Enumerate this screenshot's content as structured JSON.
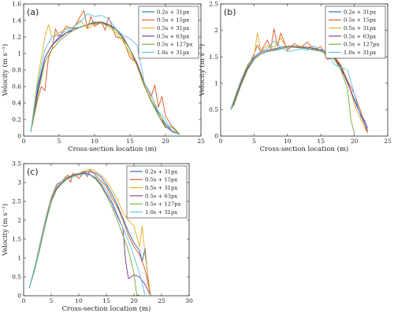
{
  "series_colors": [
    "#1f5fb0",
    "#d9531e",
    "#e0ad1f",
    "#7b2f8f",
    "#73a82e",
    "#55c2ee"
  ],
  "chart_data": [
    {
      "type": "line",
      "panel_label": "(a)",
      "xlabel": "Cross-section location (m)",
      "ylabel": "Velocity (m s⁻¹)",
      "xlim": [
        0,
        25
      ],
      "ylim": [
        0,
        1.6
      ],
      "xticks": [
        0,
        5,
        10,
        15,
        20,
        25
      ],
      "yticks": [
        0,
        0.2,
        0.4,
        0.6,
        0.8,
        1.0,
        1.2,
        1.4,
        1.6
      ],
      "ytick_labels": [
        "0",
        "0.2",
        "0.4",
        "0.6",
        "0.8",
        "1",
        "1.2",
        "1.4",
        "1.6"
      ],
      "legend_position": "top-right",
      "series": [
        {
          "name": "0.2s + 31px",
          "x": [
            1,
            2,
            3,
            4,
            5,
            6,
            7,
            8,
            9,
            10,
            11,
            12,
            13,
            14,
            15,
            16,
            17,
            18,
            19,
            20,
            21,
            22
          ],
          "y": [
            0.05,
            0.6,
            0.95,
            1.1,
            1.2,
            1.25,
            1.3,
            1.32,
            1.35,
            1.36,
            1.38,
            1.35,
            1.3,
            1.2,
            1.05,
            0.85,
            0.62,
            0.42,
            0.28,
            0.15,
            0.06,
            0.02
          ]
        },
        {
          "name": "0.5s + 15px",
          "x": [
            1,
            2,
            2.5,
            3,
            3.5,
            4,
            4.5,
            5,
            6,
            7,
            8,
            8.5,
            9,
            9.5,
            10,
            11,
            11.5,
            12,
            12.5,
            13,
            14,
            15,
            16,
            17,
            18,
            18.5,
            19,
            19.5,
            20,
            21,
            22
          ],
          "y": [
            0.05,
            0.45,
            0.6,
            0.55,
            0.95,
            1.05,
            1.3,
            1.2,
            1.33,
            1.3,
            1.45,
            1.52,
            1.3,
            1.45,
            1.33,
            1.38,
            1.28,
            1.44,
            1.32,
            1.2,
            1.18,
            0.95,
            0.88,
            0.65,
            0.48,
            0.62,
            0.35,
            0.48,
            0.25,
            0.1,
            0.02
          ]
        },
        {
          "name": "0.5s + 31px",
          "x": [
            1,
            2,
            3,
            3.5,
            4,
            5,
            6,
            7,
            8,
            9,
            10,
            11,
            12,
            13,
            14,
            15,
            16,
            17,
            18,
            19,
            20,
            21,
            22
          ],
          "y": [
            0.05,
            0.7,
            1.2,
            1.35,
            1.2,
            1.25,
            1.3,
            1.32,
            1.4,
            1.3,
            1.35,
            1.38,
            1.32,
            1.25,
            1.15,
            1.0,
            0.85,
            0.6,
            0.45,
            0.3,
            0.12,
            0.05,
            0.02
          ]
        },
        {
          "name": "0.5s + 63px",
          "x": [
            1,
            2,
            3,
            4,
            5,
            6,
            7,
            8,
            9,
            10,
            11,
            12,
            13,
            14,
            15,
            16,
            17,
            18,
            19,
            20,
            21,
            22
          ],
          "y": [
            0.05,
            0.55,
            0.95,
            1.1,
            1.18,
            1.25,
            1.28,
            1.32,
            1.35,
            1.38,
            1.38,
            1.34,
            1.3,
            1.2,
            1.05,
            0.88,
            0.62,
            0.42,
            0.25,
            0.12,
            0.05,
            0.02
          ]
        },
        {
          "name": "0.5s + 127px",
          "x": [
            1,
            2,
            3,
            4,
            5,
            6,
            7,
            8,
            9,
            10,
            11,
            12,
            13,
            14,
            15,
            16,
            17,
            18,
            19,
            20,
            21,
            22
          ],
          "y": [
            0.05,
            0.5,
            0.9,
            1.05,
            1.15,
            1.22,
            1.28,
            1.32,
            1.35,
            1.37,
            1.36,
            1.34,
            1.28,
            1.18,
            1.05,
            0.85,
            0.62,
            0.42,
            0.25,
            0.1,
            0.12,
            0.02
          ]
        },
        {
          "name": "1.0s + 31px",
          "x": [
            1,
            2,
            3,
            4,
            5,
            6,
            7,
            8,
            9,
            10,
            11,
            12,
            13,
            14,
            15,
            16,
            17,
            18,
            19,
            20,
            21,
            22
          ],
          "y": [
            0.05,
            0.65,
            1.05,
            1.2,
            1.22,
            1.28,
            1.32,
            1.38,
            1.48,
            1.45,
            1.46,
            1.42,
            1.3,
            1.22,
            1.18,
            1.1,
            0.65,
            0.5,
            0.3,
            0.2,
            0.05,
            0.02
          ]
        }
      ]
    },
    {
      "type": "line",
      "panel_label": "(b)",
      "xlabel": "Cross-section location (m)",
      "ylabel": "Velocity (m s⁻¹)",
      "xlim": [
        0,
        25
      ],
      "ylim": [
        0,
        2.5
      ],
      "xticks": [
        0,
        5,
        10,
        15,
        20,
        25
      ],
      "yticks": [
        0,
        0.5,
        1.0,
        1.5,
        2.0,
        2.5
      ],
      "ytick_labels": [
        "0",
        "0.5",
        "1",
        "1.5",
        "2",
        "2.5"
      ],
      "legend_position": "top-right",
      "series": [
        {
          "name": "0.2s + 31px",
          "x": [
            1.5,
            2,
            3,
            4,
            5,
            6,
            7,
            8,
            9,
            10,
            11,
            12,
            13,
            14,
            15,
            16,
            17,
            18,
            19,
            20,
            21,
            21.5,
            22
          ],
          "y": [
            0.5,
            0.6,
            0.95,
            1.25,
            1.45,
            1.55,
            1.6,
            1.62,
            1.65,
            1.68,
            1.68,
            1.67,
            1.66,
            1.64,
            1.62,
            1.55,
            1.48,
            1.3,
            1.0,
            0.7,
            0.4,
            0.3,
            0.15
          ]
        },
        {
          "name": "0.5s + 15px",
          "x": [
            1.5,
            2,
            3,
            4,
            5,
            5.5,
            6,
            7,
            7.5,
            8,
            8.5,
            9,
            10,
            11,
            12,
            13,
            14,
            15,
            16,
            17,
            18,
            19,
            20,
            21,
            22
          ],
          "y": [
            0.5,
            0.65,
            1.0,
            1.3,
            1.55,
            1.72,
            1.6,
            1.82,
            1.65,
            2.03,
            1.7,
            1.95,
            1.62,
            1.75,
            1.68,
            1.78,
            1.62,
            1.7,
            1.45,
            1.5,
            1.25,
            1.05,
            0.8,
            0.45,
            0.05
          ]
        },
        {
          "name": "0.5s + 31px",
          "x": [
            1.5,
            2,
            3,
            4,
            5,
            5.5,
            6,
            7,
            8,
            9,
            10,
            11,
            12,
            13,
            14,
            15,
            16,
            17,
            18,
            19,
            20,
            21,
            22
          ],
          "y": [
            0.5,
            0.7,
            1.05,
            1.35,
            1.5,
            1.95,
            1.6,
            1.72,
            1.68,
            1.85,
            1.65,
            1.7,
            1.7,
            1.68,
            1.7,
            1.6,
            1.58,
            1.52,
            1.35,
            1.05,
            0.6,
            0.3,
            0.05
          ]
        },
        {
          "name": "0.5s + 63px",
          "x": [
            1.5,
            2,
            3,
            4,
            5,
            6,
            7,
            8,
            9,
            10,
            11,
            12,
            13,
            14,
            15,
            16,
            17,
            18,
            19,
            20,
            21,
            22
          ],
          "y": [
            0.5,
            0.62,
            0.98,
            1.28,
            1.48,
            1.58,
            1.62,
            1.65,
            1.68,
            1.7,
            1.7,
            1.68,
            1.68,
            1.66,
            1.64,
            1.58,
            1.5,
            1.32,
            1.02,
            0.68,
            0.38,
            0.1
          ]
        },
        {
          "name": "0.5s + 127px",
          "x": [
            1.5,
            2,
            3,
            4,
            5,
            6,
            7,
            8,
            9,
            10,
            11,
            12,
            13,
            14,
            15,
            16,
            17,
            18,
            19,
            19.5,
            20
          ],
          "y": [
            0.5,
            0.6,
            0.95,
            1.25,
            1.45,
            1.55,
            1.6,
            1.63,
            1.66,
            1.68,
            1.68,
            1.67,
            1.65,
            1.63,
            1.6,
            1.55,
            1.45,
            1.25,
            0.9,
            0.3,
            0.05
          ]
        },
        {
          "name": "1.0s + 31px",
          "x": [
            1.5,
            2,
            3,
            4,
            5,
            6,
            7,
            8,
            9,
            10,
            11,
            12,
            13,
            14,
            15,
            16,
            17,
            18,
            19,
            20,
            21
          ],
          "y": [
            0.5,
            0.68,
            1.05,
            1.32,
            1.5,
            1.6,
            1.65,
            1.8,
            1.68,
            1.6,
            1.62,
            1.65,
            1.62,
            1.7,
            1.62,
            1.58,
            1.35,
            1.3,
            1.25,
            0.8,
            0.35
          ]
        }
      ]
    },
    {
      "type": "line",
      "panel_label": "(c)",
      "xlabel": "Cross-section location (m)",
      "ylabel": "Velocity (m s⁻¹)",
      "xlim": [
        0,
        30
      ],
      "ylim": [
        0,
        3.5
      ],
      "xticks": [
        0,
        5,
        10,
        15,
        20,
        25,
        30
      ],
      "yticks": [
        0,
        0.5,
        1.0,
        1.5,
        2.0,
        2.5,
        3.0,
        3.5
      ],
      "ytick_labels": [
        "0",
        "0.5",
        "1",
        "1.5",
        "2",
        "2.5",
        "3",
        "3.5"
      ],
      "legend_position": "top-right",
      "series": [
        {
          "name": "0.2s + 31px",
          "x": [
            1,
            2,
            3,
            4,
            5,
            6,
            7,
            8,
            9,
            10,
            11,
            12,
            13,
            14,
            15,
            16,
            17,
            18,
            19,
            20,
            21,
            21.5,
            22,
            22.5,
            23
          ],
          "y": [
            0.2,
            0.7,
            1.3,
            2.0,
            2.55,
            2.85,
            3.0,
            3.15,
            3.2,
            3.25,
            3.28,
            3.28,
            3.25,
            3.15,
            2.95,
            2.7,
            2.4,
            2.05,
            1.7,
            1.4,
            1.2,
            0.9,
            1.25,
            0.5,
            0.02
          ]
        },
        {
          "name": "0.5s + 15px",
          "x": [
            1,
            2,
            3,
            4,
            5,
            6,
            7,
            8,
            8.5,
            9,
            10,
            11,
            11.5,
            12,
            13,
            14,
            15,
            16,
            17,
            18,
            19,
            20,
            21,
            22,
            23
          ],
          "y": [
            0.2,
            0.75,
            1.4,
            2.05,
            2.6,
            2.95,
            3.05,
            3.2,
            3.0,
            3.25,
            3.1,
            3.3,
            3.15,
            3.35,
            3.2,
            3.05,
            2.9,
            2.6,
            2.35,
            2.0,
            1.6,
            1.3,
            1.1,
            0.7,
            0.02
          ]
        },
        {
          "name": "0.5s + 31px",
          "x": [
            1,
            2,
            3,
            4,
            5,
            6,
            7,
            8,
            9,
            10,
            11,
            12,
            13,
            14,
            15,
            16,
            17,
            18,
            19,
            20,
            21,
            21.5,
            22,
            23
          ],
          "y": [
            0.2,
            0.72,
            1.35,
            2.0,
            2.55,
            2.9,
            3.05,
            3.15,
            3.2,
            3.25,
            3.3,
            3.35,
            3.3,
            3.2,
            3.05,
            2.8,
            2.55,
            2.2,
            2.0,
            1.85,
            1.3,
            1.85,
            1.1,
            0.02
          ]
        },
        {
          "name": "0.5s + 63px",
          "x": [
            1,
            2,
            3,
            4,
            5,
            6,
            7,
            8,
            9,
            10,
            11,
            12,
            13,
            14,
            15,
            16,
            17,
            18,
            18.5,
            19,
            19.5,
            20,
            21,
            22,
            23
          ],
          "y": [
            0.2,
            0.7,
            1.3,
            1.95,
            2.5,
            2.85,
            3.0,
            3.12,
            3.2,
            3.22,
            3.25,
            3.22,
            3.12,
            2.95,
            2.7,
            2.45,
            2.1,
            1.8,
            0.9,
            0.45,
            0.5,
            0.55,
            0.5,
            0.3,
            0.02
          ]
        },
        {
          "name": "0.5s + 127px",
          "x": [
            1,
            2,
            3,
            4,
            5,
            6,
            7,
            8,
            9,
            10,
            11,
            12,
            13,
            14,
            15,
            16,
            17,
            18,
            19,
            20,
            20.5,
            21
          ],
          "y": [
            0.2,
            0.68,
            1.28,
            1.92,
            2.48,
            2.82,
            2.98,
            3.1,
            3.18,
            3.2,
            3.22,
            3.2,
            3.1,
            2.92,
            2.65,
            2.35,
            2.0,
            1.6,
            1.2,
            0.6,
            0.02,
            0.02
          ]
        },
        {
          "name": "1.0s + 31px",
          "x": [
            1,
            2,
            3,
            4,
            5,
            6,
            7,
            8,
            9,
            10,
            11,
            12,
            13,
            14,
            15,
            16,
            17,
            18,
            19,
            20,
            21,
            22
          ],
          "y": [
            0.2,
            0.75,
            1.35,
            2.0,
            2.55,
            2.9,
            3.05,
            3.1,
            3.15,
            3.2,
            3.22,
            3.2,
            3.15,
            3.0,
            2.8,
            2.5,
            2.15,
            1.8,
            1.45,
            1.05,
            0.6,
            0.02
          ]
        }
      ]
    }
  ]
}
